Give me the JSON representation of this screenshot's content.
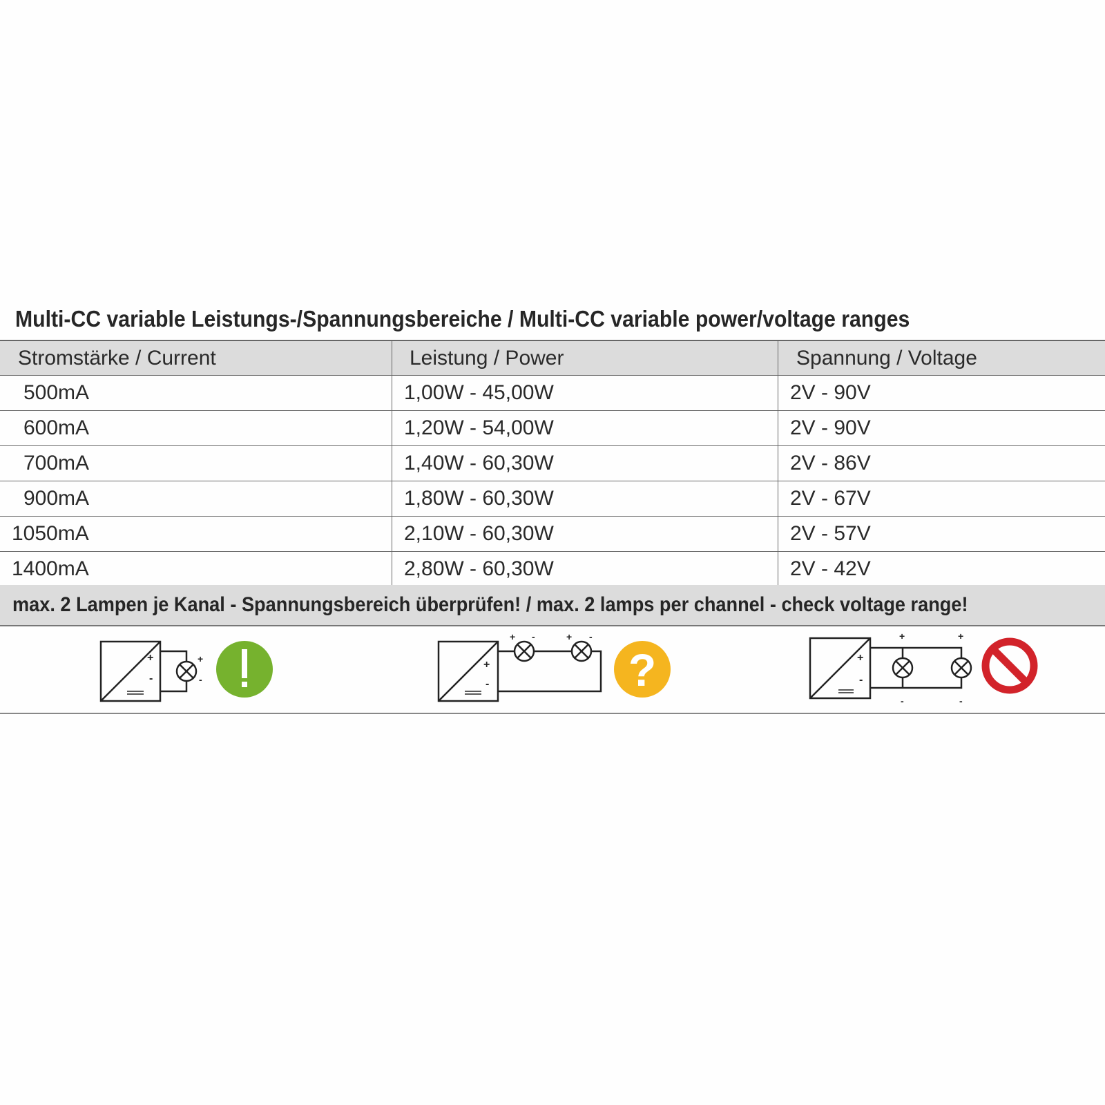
{
  "title": "Multi-CC variable Leistungs-/Spannungsbereiche / Multi-CC  variable power/voltage ranges",
  "table": {
    "headers": [
      "Stromstärke / Current",
      "Leistung / Power",
      "Spannung / Voltage"
    ],
    "rows": [
      [
        "500mA",
        "1,00W - 45,00W",
        "2V - 90V"
      ],
      [
        "600mA",
        "1,20W - 54,00W",
        "2V - 90V"
      ],
      [
        "700mA",
        "1,40W - 60,30W",
        "2V - 86V"
      ],
      [
        "900mA",
        "1,80W - 60,30W",
        "2V - 67V"
      ],
      [
        "1050mA",
        "2,10W - 60,30W",
        "2V - 57V"
      ],
      [
        "1400mA",
        "2,80W - 60,30W",
        "2V - 42V"
      ]
    ]
  },
  "notice": "max. 2 Lampen je Kanal - Spannungsbereich überprüfen! / max. 2 lamps per channel - check voltage range!",
  "diagrams": [
    {
      "wiring": "single lamp",
      "status_icon": "exclamation-icon",
      "color": "#76b22e",
      "symbol": "!"
    },
    {
      "wiring": "two lamps in series",
      "status_icon": "question-icon",
      "color": "#f5b51f",
      "symbol": "?"
    },
    {
      "wiring": "two lamps in parallel",
      "status_icon": "prohibited-icon",
      "color": "#d2232a"
    }
  ]
}
